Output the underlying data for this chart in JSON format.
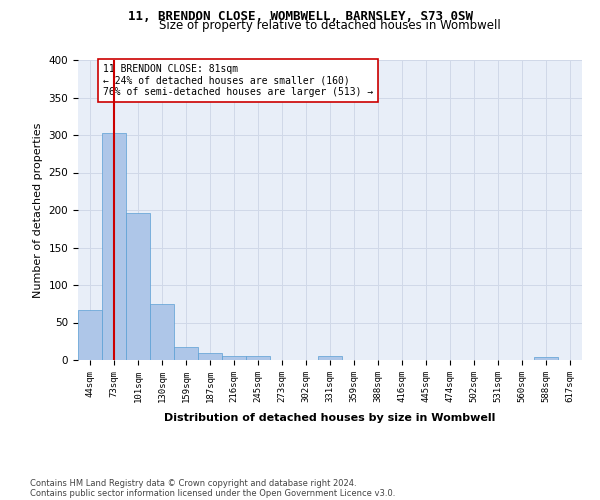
{
  "title1": "11, BRENDON CLOSE, WOMBWELL, BARNSLEY, S73 0SW",
  "title2": "Size of property relative to detached houses in Wombwell",
  "xlabel": "Distribution of detached houses by size in Wombwell",
  "ylabel": "Number of detached properties",
  "bin_labels": [
    "44sqm",
    "73sqm",
    "101sqm",
    "130sqm",
    "159sqm",
    "187sqm",
    "216sqm",
    "245sqm",
    "273sqm",
    "302sqm",
    "331sqm",
    "359sqm",
    "388sqm",
    "416sqm",
    "445sqm",
    "474sqm",
    "502sqm",
    "531sqm",
    "560sqm",
    "588sqm",
    "617sqm"
  ],
  "bar_heights": [
    67,
    303,
    196,
    75,
    18,
    9,
    5,
    5,
    0,
    0,
    5,
    0,
    0,
    0,
    0,
    0,
    0,
    0,
    0,
    4,
    0
  ],
  "bar_color": "#aec6e8",
  "bar_edge_color": "#5a9fd4",
  "grid_color": "#d0d8e8",
  "background_color": "#e8eef8",
  "vline_x": 1,
  "vline_color": "#cc0000",
  "annotation_text": "11 BRENDON CLOSE: 81sqm\n← 24% of detached houses are smaller (160)\n76% of semi-detached houses are larger (513) →",
  "annotation_box_color": "#ffffff",
  "annotation_box_edge": "#cc0000",
  "ylim": [
    0,
    400
  ],
  "yticks": [
    0,
    50,
    100,
    150,
    200,
    250,
    300,
    350,
    400
  ],
  "footer1": "Contains HM Land Registry data © Crown copyright and database right 2024.",
  "footer2": "Contains public sector information licensed under the Open Government Licence v3.0."
}
